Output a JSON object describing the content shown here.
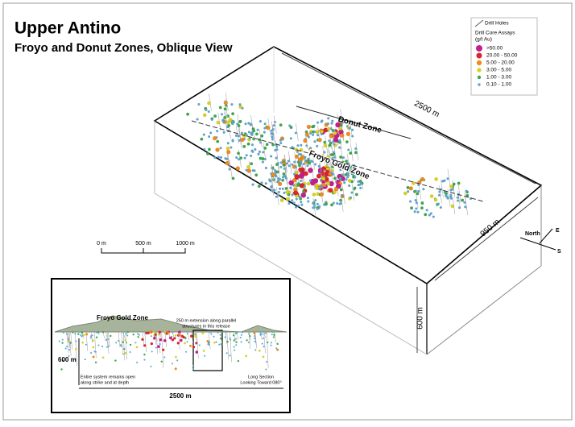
{
  "title": "Upper Antino",
  "subtitle": "Froyo and Donut Zones, Oblique View",
  "legend": {
    "drill_holes": "Drill Holes",
    "heading": [
      "Drill Core Assays",
      "(g/t Au)"
    ],
    "items": [
      {
        "label": ">50.00",
        "color": "#c21f8e"
      },
      {
        "label": "20.00 - 50.00",
        "color": "#d8262e"
      },
      {
        "label": "5.00 - 20.00",
        "color": "#f08a1c"
      },
      {
        "label": "3.00 - 5.00",
        "color": "#d9d21c"
      },
      {
        "label": "1.00 - 3.00",
        "color": "#3aa84a"
      },
      {
        "label": "0.10 - 1.00",
        "color": "#5aa7d6"
      }
    ]
  },
  "box_labels": {
    "length": "2500 m",
    "width": "950 m",
    "depth": "600 m"
  },
  "zones": {
    "donut": "Donut Zone",
    "froyo": "Froyo Gold Zone"
  },
  "compass": {
    "north": "North",
    "east": "E",
    "south": "S"
  },
  "scale_bar": [
    "0 m",
    "500 m",
    "1000 m"
  ],
  "inset": {
    "zone": "Froyo Gold Zone",
    "extension": [
      "250 m extension along parallel",
      "structures in this release"
    ],
    "depth": "600 m",
    "open": [
      "Entire system remains open",
      "along strike and at depth"
    ],
    "section": [
      "Long Section",
      "Looking Toward 080°"
    ],
    "length": "2500 m"
  }
}
